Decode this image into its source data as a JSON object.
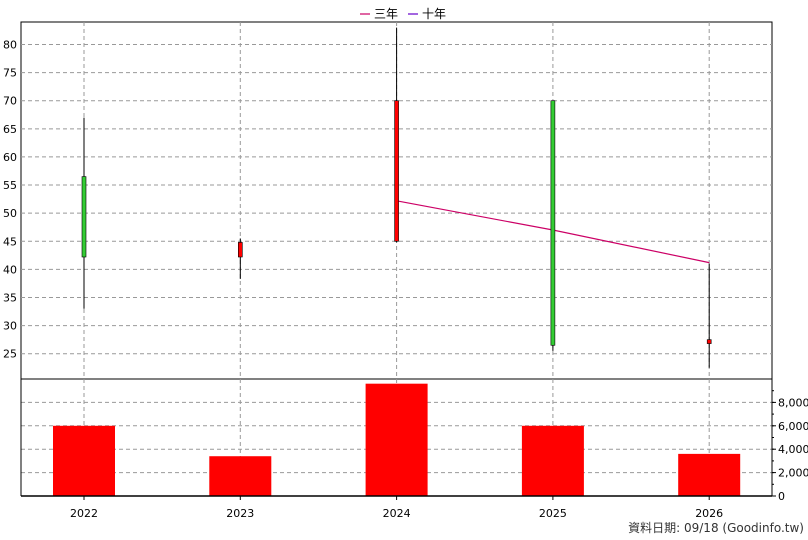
{
  "legend": [
    {
      "label": "三年",
      "color": "#cc0066"
    },
    {
      "label": "十年",
      "color": "#6600cc"
    }
  ],
  "footer": "資料日期: 09/18  (Goodinfo.tw)",
  "chart_data": [
    {
      "type": "candlestick",
      "categories": [
        "2022",
        "2023",
        "2024",
        "2025",
        "2026"
      ],
      "ylim": [
        20.5,
        84
      ],
      "yticks": [
        25,
        30,
        35,
        40,
        45,
        50,
        55,
        60,
        65,
        70,
        75,
        80
      ],
      "grid": true,
      "up_color": "#ff0000",
      "down_color": "#33cc33",
      "candles": [
        {
          "x": "2022",
          "open": 56.5,
          "high": 67.0,
          "low": 33.0,
          "close": 42.2
        },
        {
          "x": "2023",
          "open": 42.2,
          "high": 45.5,
          "low": 38.3,
          "close": 44.8
        },
        {
          "x": "2024",
          "open": 45.0,
          "high": 83.0,
          "low": 44.8,
          "close": 70.0
        },
        {
          "x": "2025",
          "open": 70.0,
          "high": 70.0,
          "low": 25.5,
          "close": 26.5
        },
        {
          "x": "2026",
          "open": 26.8,
          "high": 41.0,
          "low": 22.5,
          "close": 27.5
        }
      ],
      "series": [
        {
          "name": "三年",
          "color": "#cc0066",
          "x": [
            "2024",
            "2025",
            "2026"
          ],
          "values": [
            52.2,
            47.0,
            41.2
          ]
        },
        {
          "name": "十年",
          "color": "#6600cc",
          "x": [],
          "values": []
        }
      ]
    },
    {
      "type": "bar",
      "categories": [
        "2022",
        "2023",
        "2024",
        "2025",
        "2026"
      ],
      "values": [
        6000,
        3400,
        9600,
        6000,
        3600
      ],
      "ylim": [
        0,
        10000
      ],
      "yticks": [
        0,
        2000,
        4000,
        6000,
        8000
      ],
      "ytick_labels": [
        "0",
        "2,000",
        "4,000",
        "6,000",
        "8,000"
      ],
      "color": "#ff0000",
      "grid": true
    }
  ]
}
